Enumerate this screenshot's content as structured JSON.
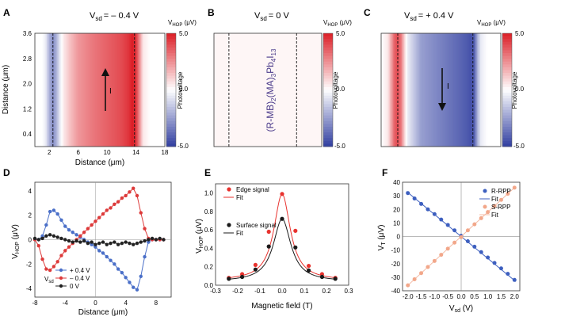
{
  "chart_data": [
    {
      "id": "A",
      "type": "heatmap",
      "title_main": "V",
      "title_sub": "sd",
      "title_value": "= – 0.4 V",
      "cbar_label_main": "V",
      "cbar_label_sub": "HOP",
      "cbar_label_unit": " (μV)",
      "cbar_axis_label": "Photovoltage",
      "cbar_ticks": [
        "5.0",
        "0.0",
        "-5.0"
      ],
      "xlabel": "Distance (μm)",
      "ylabel": "Distance (μm)",
      "xlim": [
        0,
        18
      ],
      "ylim": [
        0,
        3.6
      ],
      "xticks": [
        "2",
        "6",
        "10",
        "14",
        "18"
      ],
      "xtick_values": [
        2,
        6,
        10,
        14,
        18
      ],
      "yticks": [
        "0.4",
        "1.2",
        "2.0",
        "2.8",
        "3.6"
      ],
      "ytick_values": [
        0.4,
        1.2,
        2.0,
        2.8,
        3.6
      ],
      "edges": [
        2.5,
        13.8
      ],
      "arrow": "up",
      "current_label": "I",
      "profile_x": [
        0,
        1,
        1.5,
        2,
        2.5,
        3,
        3.5,
        4,
        5,
        6,
        8,
        10,
        12,
        13,
        13.5,
        14,
        14.5,
        15,
        16,
        17,
        18
      ],
      "profile_v": [
        0,
        0,
        -0.5,
        -2,
        -3,
        -2,
        -0.5,
        0.5,
        1.5,
        2.3,
        3,
        3.5,
        4,
        4.5,
        5,
        4.5,
        2.5,
        0.5,
        0,
        0,
        0
      ]
    },
    {
      "id": "B",
      "type": "heatmap",
      "title_main": "V",
      "title_sub": "sd",
      "title_value": "= 0 V",
      "cbar_label_main": "V",
      "cbar_label_sub": "HOP",
      "cbar_label_unit": " (μV)",
      "cbar_axis_label": "Photovoltage",
      "cbar_ticks": [
        "5.0",
        "0.0",
        "-5.0"
      ],
      "xlim": [
        0,
        18
      ],
      "edges": [
        2.5,
        13.8
      ],
      "material": "(R-MB)2(MA)3Pb4I13",
      "profile_x": [
        0,
        18
      ],
      "profile_v": [
        0.2,
        0.2
      ]
    },
    {
      "id": "C",
      "type": "heatmap",
      "title_main": "V",
      "title_sub": "sd",
      "title_value": "= + 0.4 V",
      "cbar_label_main": "V",
      "cbar_label_sub": "HOP",
      "cbar_label_unit": " (μV)",
      "cbar_axis_label": "Photovoltage",
      "cbar_ticks": [
        "5.0",
        "0.0",
        "-5.0"
      ],
      "xlim": [
        0,
        18
      ],
      "edges": [
        2.5,
        13.8
      ],
      "arrow": "down",
      "current_label": "I",
      "profile_x": [
        0,
        1,
        1.5,
        2,
        2.5,
        3,
        3.5,
        4,
        5,
        6,
        8,
        10,
        12,
        13,
        13.5,
        14,
        14.5,
        15,
        16,
        17,
        18
      ],
      "profile_v": [
        0,
        0.5,
        2,
        3.5,
        4,
        3,
        1,
        -0.5,
        -1.5,
        -2.5,
        -3,
        -3.5,
        -4,
        -4.3,
        -4.5,
        -4.2,
        -2,
        -0.5,
        0,
        0,
        0
      ]
    },
    {
      "id": "D",
      "type": "line",
      "xlabel": "Distance (μm)",
      "ylabel_main": "V",
      "ylabel_sub": "HOP",
      "ylabel_unit": " (μV)",
      "xlim": [
        -8,
        10
      ],
      "ylim": [
        -4.7,
        4.7
      ],
      "xticks": [
        "-8",
        "-4",
        "0",
        "4",
        "8"
      ],
      "xtick_values": [
        -8,
        -4,
        0,
        4,
        8
      ],
      "yticks": [
        "-4",
        "-2",
        "0",
        "2",
        "4"
      ],
      "ytick_values": [
        -4,
        -2,
        0,
        2,
        4
      ],
      "legend_title_main": "V",
      "legend_title_sub": "sd",
      "series": [
        {
          "name": "+ 0.4 V",
          "color": "#4a6fc8",
          "x": [
            -8,
            -7.5,
            -7,
            -6.5,
            -6,
            -5.5,
            -5,
            -4.5,
            -4,
            -3.5,
            -3,
            -2.5,
            -2,
            -1.5,
            -1,
            -0.5,
            0,
            0.5,
            1,
            1.5,
            2,
            2.5,
            3,
            3.5,
            4,
            4.5,
            5,
            5.5,
            6,
            6.5,
            7,
            7.5,
            8,
            8.5,
            9
          ],
          "y": [
            0,
            0,
            0.3,
            1.2,
            2.3,
            2.4,
            2.1,
            1.6,
            1.1,
            0.8,
            0.6,
            0.4,
            0.2,
            0.0,
            -0.2,
            -0.4,
            -0.6,
            -0.9,
            -1.1,
            -1.4,
            -1.7,
            -2.0,
            -2.4,
            -2.7,
            -3.1,
            -3.5,
            -3.9,
            -4.1,
            -3.0,
            -1.4,
            -0.2,
            0,
            0,
            0,
            0
          ]
        },
        {
          "name": "– 0.4 V",
          "color": "#dd3a3a",
          "x": [
            -8,
            -7.5,
            -7,
            -6.5,
            -6,
            -5.5,
            -5,
            -4.5,
            -4,
            -3.5,
            -3,
            -2.5,
            -2,
            -1.5,
            -1,
            -0.5,
            0,
            0.5,
            1,
            1.5,
            2,
            2.5,
            3,
            3.5,
            4,
            4.5,
            5,
            5.5,
            6,
            6.5,
            7,
            7.5,
            8,
            8.5,
            9
          ],
          "y": [
            0,
            -0.5,
            -1.6,
            -2.4,
            -2.5,
            -2.2,
            -1.8,
            -1.3,
            -0.9,
            -0.6,
            -0.3,
            0.0,
            0.3,
            0.6,
            0.9,
            1.2,
            1.5,
            1.8,
            2.1,
            2.4,
            2.6,
            2.9,
            3.1,
            3.4,
            3.6,
            3.9,
            4.2,
            3.6,
            2.2,
            0.9,
            0.1,
            0,
            0,
            0,
            0
          ]
        },
        {
          "name": "0 V",
          "color": "#222222",
          "x": [
            -8,
            -7.5,
            -7,
            -6.5,
            -6,
            -5.5,
            -5,
            -4.5,
            -4,
            -3.5,
            -3,
            -2.5,
            -2,
            -1.5,
            -1,
            -0.5,
            0,
            0.5,
            1,
            1.5,
            2,
            2.5,
            3,
            3.5,
            4,
            4.5,
            5,
            5.5,
            6,
            6.5,
            7,
            7.5,
            8,
            8.5,
            9
          ],
          "y": [
            0.1,
            0.0,
            0.1,
            0.3,
            0.4,
            0.3,
            0.2,
            0.1,
            0.0,
            -0.1,
            -0.2,
            -0.1,
            -0.2,
            -0.1,
            -0.3,
            -0.2,
            -0.4,
            -0.3,
            -0.2,
            -0.4,
            -0.3,
            -0.2,
            -0.4,
            -0.3,
            -0.2,
            -0.3,
            -0.4,
            -0.3,
            -0.2,
            -0.1,
            0.0,
            0.1,
            0.0,
            0.1,
            0.0
          ]
        }
      ]
    },
    {
      "id": "E",
      "type": "scatter",
      "xlabel": "Magnetic field (T)",
      "ylabel_main": "V",
      "ylabel_sub": "HOP",
      "ylabel_unit": " (μV)",
      "xlim": [
        -0.3,
        0.3
      ],
      "ylim": [
        0,
        1.1
      ],
      "xticks": [
        "-0.3",
        "-0.2",
        "-0.1",
        "0.0",
        "0.1",
        "0.2",
        "0.3"
      ],
      "xtick_values": [
        -0.3,
        -0.2,
        -0.1,
        0,
        0.1,
        0.2,
        0.3
      ],
      "yticks": [
        "0.0",
        "0.2",
        "0.4",
        "0.6",
        "0.8",
        "1.0"
      ],
      "ytick_values": [
        0,
        0.2,
        0.4,
        0.6,
        0.8,
        1.0
      ],
      "series": [
        {
          "name": "Edge signal",
          "fit_name": "Fit",
          "color": "#e8322e",
          "x": [
            -0.24,
            -0.18,
            -0.12,
            -0.06,
            0,
            0.06,
            0.12,
            0.18,
            0.24
          ],
          "y": [
            0.08,
            0.12,
            0.22,
            0.58,
            0.99,
            0.59,
            0.21,
            0.12,
            0.08
          ],
          "fit_gamma": 0.045,
          "fit_amp": 0.94,
          "fit_base": 0.05
        },
        {
          "name": "Surface signal",
          "fit_name": "Fit",
          "color": "#1a1a1a",
          "x": [
            -0.24,
            -0.18,
            -0.12,
            -0.06,
            0,
            0.06,
            0.12,
            0.18,
            0.24
          ],
          "y": [
            0.07,
            0.09,
            0.17,
            0.42,
            0.72,
            0.41,
            0.16,
            0.09,
            0.07
          ],
          "fit_gamma": 0.048,
          "fit_amp": 0.68,
          "fit_base": 0.04
        }
      ]
    },
    {
      "id": "F",
      "type": "scatter",
      "xlabel_main": "V",
      "xlabel_sub": "sd",
      "xlabel_unit": " (V)",
      "ylabel_main": "V",
      "ylabel_sub": "T",
      "ylabel_unit": " (μV)",
      "xlim": [
        -2.2,
        2.2
      ],
      "ylim": [
        -40,
        40
      ],
      "xticks": [
        "-2.0",
        "-1.5",
        "-1.0",
        "-0.5",
        "0.0",
        "0.5",
        "1.0",
        "1.5",
        "2.0"
      ],
      "xtick_values": [
        -2,
        -1.5,
        -1,
        -0.5,
        0,
        0.5,
        1,
        1.5,
        2
      ],
      "yticks": [
        "-40",
        "-30",
        "-20",
        "-10",
        "0",
        "10",
        "20",
        "30",
        "40"
      ],
      "ytick_values": [
        -40,
        -30,
        -20,
        -10,
        0,
        10,
        20,
        30,
        40
      ],
      "series": [
        {
          "name": "R-RPP",
          "fit_name": "Fit",
          "color": "#3d5fbf",
          "fit_color": "#3d5fbf",
          "slope": -16.2,
          "x": [
            -2.0,
            -1.75,
            -1.5,
            -1.25,
            -1.0,
            -0.75,
            -0.5,
            -0.25,
            0,
            0.25,
            0.5,
            0.75,
            1.0,
            1.25,
            1.5,
            1.75,
            2.0
          ],
          "y": [
            32,
            28,
            24,
            20,
            16.5,
            12.5,
            8.5,
            4.5,
            0.5,
            -3.5,
            -7.5,
            -11.5,
            -15.5,
            -19.5,
            -23.5,
            -27.5,
            -32
          ]
        },
        {
          "name": "S-RPP",
          "fit_name": "Fit",
          "color": "#f2a78a",
          "fit_color": "#f4b9a2",
          "slope": 18.0,
          "x": [
            -2.0,
            -1.75,
            -1.5,
            -1.25,
            -1.0,
            -0.75,
            -0.5,
            -0.25,
            0,
            0.25,
            0.5,
            0.75,
            1.0,
            1.25,
            1.5,
            1.75,
            2.0
          ],
          "y": [
            -36,
            -31.5,
            -27,
            -22.5,
            -18,
            -13.5,
            -9,
            -4.5,
            -0.5,
            4.5,
            9,
            13.5,
            18,
            22.5,
            27,
            31.5,
            36
          ]
        }
      ]
    }
  ]
}
